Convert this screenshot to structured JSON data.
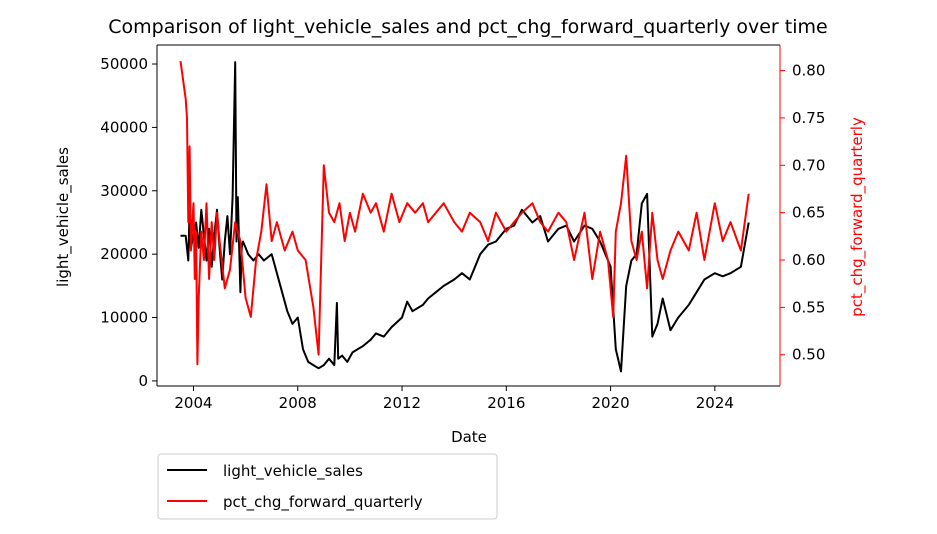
{
  "chart_data": {
    "type": "line",
    "title": "Comparison of light_vehicle_sales and pct_chg_forward_quarterly over time",
    "xlabel": "Date",
    "ylabel": "light_vehicle_sales",
    "y2label": "pct_chg_forward_quarterly",
    "xlim": [
      2002.6,
      2026.5
    ],
    "ylim": [
      -800,
      53000
    ],
    "y2lim": [
      0.467,
      0.827
    ],
    "x_ticks": [
      "2004",
      "2008",
      "2012",
      "2016",
      "2020",
      "2024"
    ],
    "y_ticks": [
      "0",
      "10000",
      "20000",
      "30000",
      "40000",
      "50000"
    ],
    "y2_ticks": [
      "0.50",
      "0.55",
      "0.60",
      "0.65",
      "0.70",
      "0.75",
      "0.80"
    ],
    "legend_position": "below-left",
    "grid": false,
    "colors": {
      "light_vehicle_sales": "#000000",
      "pct_chg_forward_quarterly": "#ff0000"
    },
    "series": [
      {
        "name": "light_vehicle_sales",
        "axis": "left",
        "x": [
          2003.5,
          2003.7,
          2003.8,
          2003.85,
          2003.9,
          2004.0,
          2004.1,
          2004.2,
          2004.3,
          2004.4,
          2004.5,
          2004.6,
          2004.7,
          2004.8,
          2004.9,
          2005.0,
          2005.1,
          2005.2,
          2005.3,
          2005.4,
          2005.5,
          2005.6,
          2005.65,
          2005.7,
          2005.8,
          2005.85,
          2005.9,
          2006.0,
          2006.1,
          2006.3,
          2006.5,
          2006.7,
          2007.0,
          2007.2,
          2007.4,
          2007.6,
          2007.8,
          2008.0,
          2008.2,
          2008.4,
          2008.6,
          2008.8,
          2009.0,
          2009.2,
          2009.4,
          2009.5,
          2009.55,
          2009.7,
          2009.9,
          2010.1,
          2010.3,
          2010.5,
          2010.8,
          2011.0,
          2011.3,
          2011.6,
          2012.0,
          2012.2,
          2012.4,
          2012.8,
          2013.0,
          2013.3,
          2013.6,
          2014.0,
          2014.3,
          2014.6,
          2015.0,
          2015.3,
          2015.6,
          2016.0,
          2016.3,
          2016.6,
          2017.0,
          2017.3,
          2017.6,
          2018.0,
          2018.3,
          2018.6,
          2019.0,
          2019.3,
          2019.6,
          2020.0,
          2020.2,
          2020.4,
          2020.6,
          2020.8,
          2021.0,
          2021.2,
          2021.4,
          2021.6,
          2021.8,
          2022.0,
          2022.3,
          2022.6,
          2023.0,
          2023.3,
          2023.6,
          2024.0,
          2024.3,
          2024.6,
          2025.0,
          2025.3
        ],
        "values": [
          22900,
          22900,
          19000,
          27000,
          21000,
          23000,
          25000,
          21000,
          27000,
          23000,
          19000,
          24000,
          18000,
          23000,
          27000,
          21000,
          16000,
          22000,
          26000,
          20000,
          29000,
          50300,
          22000,
          29000,
          14000,
          21000,
          22000,
          21000,
          20000,
          19000,
          20000,
          19000,
          20000,
          17000,
          14000,
          11000,
          9000,
          10000,
          5000,
          3000,
          2500,
          2000,
          2500,
          3500,
          2500,
          12300,
          3500,
          4000,
          3000,
          4500,
          5000,
          5500,
          6500,
          7500,
          7000,
          8500,
          10000,
          12500,
          11000,
          12000,
          13000,
          14000,
          15000,
          16000,
          17000,
          16000,
          20000,
          21500,
          22000,
          24000,
          24500,
          27000,
          25000,
          26000,
          22000,
          24000,
          24500,
          22000,
          24500,
          24000,
          22000,
          18000,
          5000,
          1500,
          15000,
          19000,
          20000,
          28000,
          29500,
          7000,
          9000,
          13000,
          8000,
          10000,
          12000,
          14000,
          16000,
          17000,
          16500,
          17000,
          18000,
          25000
        ]
      },
      {
        "name": "pct_chg_forward_quarterly",
        "axis": "right",
        "x": [
          2003.5,
          2003.6,
          2003.7,
          2003.75,
          2003.8,
          2003.85,
          2003.9,
          2004.0,
          2004.05,
          2004.1,
          2004.15,
          2004.2,
          2004.3,
          2004.4,
          2004.5,
          2004.6,
          2004.7,
          2004.8,
          2004.9,
          2005.0,
          2005.2,
          2005.4,
          2005.6,
          2005.8,
          2006.0,
          2006.2,
          2006.4,
          2006.6,
          2006.8,
          2007.0,
          2007.2,
          2007.5,
          2007.8,
          2008.0,
          2008.3,
          2008.6,
          2008.8,
          2009.0,
          2009.2,
          2009.4,
          2009.6,
          2009.8,
          2010.0,
          2010.2,
          2010.5,
          2010.8,
          2011.0,
          2011.3,
          2011.6,
          2011.9,
          2012.2,
          2012.5,
          2012.8,
          2013.0,
          2013.3,
          2013.6,
          2014.0,
          2014.3,
          2014.6,
          2015.0,
          2015.3,
          2015.6,
          2016.0,
          2016.3,
          2016.6,
          2017.0,
          2017.3,
          2017.6,
          2018.0,
          2018.3,
          2018.6,
          2019.0,
          2019.3,
          2019.6,
          2019.9,
          2020.1,
          2020.2,
          2020.4,
          2020.6,
          2020.8,
          2021.0,
          2021.2,
          2021.4,
          2021.6,
          2021.8,
          2022.0,
          2022.3,
          2022.6,
          2023.0,
          2023.3,
          2023.6,
          2024.0,
          2024.3,
          2024.6,
          2025.0,
          2025.3
        ],
        "values": [
          0.81,
          0.79,
          0.77,
          0.75,
          0.64,
          0.72,
          0.61,
          0.66,
          0.58,
          0.63,
          0.49,
          0.56,
          0.63,
          0.6,
          0.66,
          0.58,
          0.64,
          0.6,
          0.65,
          0.62,
          0.57,
          0.59,
          0.64,
          0.62,
          0.56,
          0.54,
          0.6,
          0.63,
          0.68,
          0.62,
          0.64,
          0.61,
          0.63,
          0.61,
          0.6,
          0.55,
          0.5,
          0.7,
          0.65,
          0.64,
          0.66,
          0.62,
          0.65,
          0.63,
          0.67,
          0.65,
          0.66,
          0.63,
          0.67,
          0.64,
          0.66,
          0.65,
          0.66,
          0.64,
          0.65,
          0.66,
          0.64,
          0.63,
          0.65,
          0.64,
          0.62,
          0.65,
          0.63,
          0.64,
          0.65,
          0.66,
          0.64,
          0.63,
          0.65,
          0.64,
          0.6,
          0.65,
          0.58,
          0.63,
          0.6,
          0.54,
          0.63,
          0.66,
          0.71,
          0.62,
          0.6,
          0.63,
          0.57,
          0.65,
          0.6,
          0.58,
          0.61,
          0.63,
          0.61,
          0.65,
          0.6,
          0.66,
          0.62,
          0.64,
          0.61,
          0.67
        ]
      }
    ]
  }
}
